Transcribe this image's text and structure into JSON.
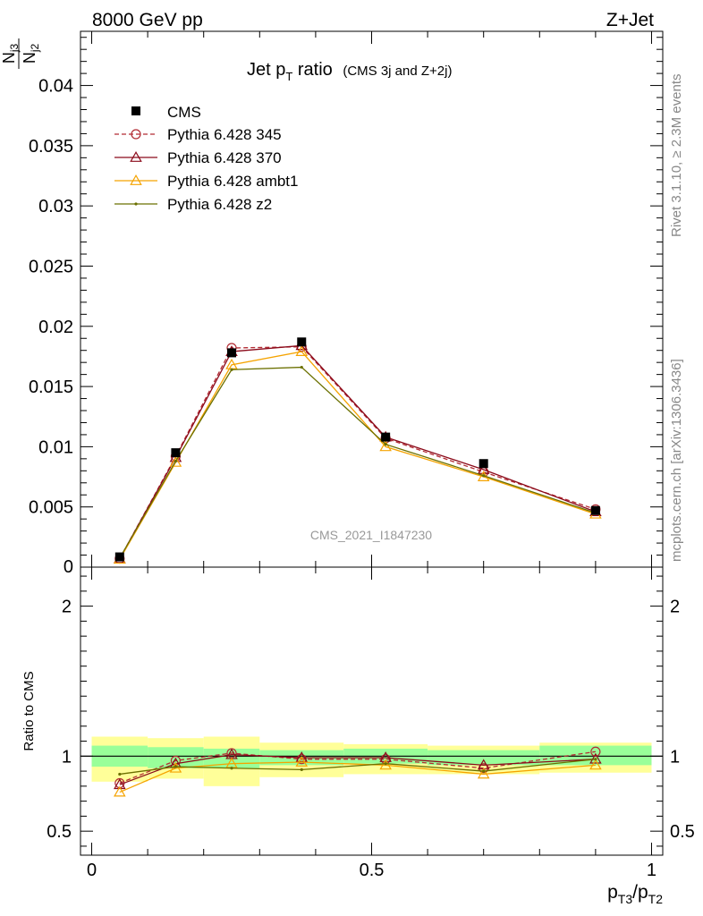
{
  "header": {
    "left": "8000 GeV pp",
    "right": "Z+Jet"
  },
  "side_labels": {
    "rivet": "Rivet 3.1.10, ≥ 2.3M events",
    "source": "mcplots.cern.ch [arXiv:1306.3436]"
  },
  "watermark": "CMS_2021_I1847230",
  "chart_data": [
    {
      "type": "line",
      "title": "Jet pT ratio (CMS 3j and Z+2j)",
      "title_parts": {
        "main": "Jet p",
        "sub": "T",
        "rest": " ratio",
        "small": "(CMS 3j and Z+2j)"
      },
      "ylabel": "Nj3/Nj2",
      "ylabel_parts": {
        "num": "N",
        "num_sub": "j3",
        "den": "N",
        "den_sub": "j2"
      },
      "xlim": [
        -0.02,
        1.02
      ],
      "ylim": [
        0,
        0.0445
      ],
      "yticks": [
        {
          "v": 0.005,
          "label": "0.005"
        },
        {
          "v": 0.01,
          "label": "0.01"
        },
        {
          "v": 0.015,
          "label": "0.015"
        },
        {
          "v": 0.02,
          "label": "0.02"
        },
        {
          "v": 0.025,
          "label": "0.025"
        },
        {
          "v": 0.03,
          "label": "0.03"
        },
        {
          "v": 0.035,
          "label": "0.035"
        },
        {
          "v": 0.04,
          "label": "0.04"
        }
      ],
      "y_zero_label": "0",
      "legend_position": "top-left",
      "x": [
        0.05,
        0.15,
        0.25,
        0.375,
        0.525,
        0.7,
        0.9
      ],
      "data": {
        "name": "CMS",
        "values": [
          0.00085,
          0.0095,
          0.0178,
          0.0187,
          0.0108,
          0.0086,
          0.0047
        ],
        "color": "#000000"
      },
      "series": [
        {
          "name": "Pythia 6.428 345",
          "color": "#b22b33",
          "dashed": true,
          "marker": "circle",
          "values": [
            0.0007,
            0.0092,
            0.0182,
            0.0183,
            0.0107,
            0.0079,
            0.0048
          ]
        },
        {
          "name": "Pythia 6.428 370",
          "color": "#8b0a1a",
          "dashed": false,
          "marker": "triangle",
          "values": [
            0.0007,
            0.0091,
            0.0179,
            0.0184,
            0.0108,
            0.0081,
            0.0046
          ]
        },
        {
          "name": "Pythia 6.428 ambt1",
          "color": "#f5a300",
          "dashed": false,
          "marker": "triangle",
          "values": [
            0.00065,
            0.0087,
            0.0168,
            0.0179,
            0.01,
            0.0075,
            0.0044
          ]
        },
        {
          "name": "Pythia 6.428 z2",
          "color": "#6b7000",
          "dashed": false,
          "marker": "dot",
          "values": [
            0.00075,
            0.0088,
            0.0164,
            0.0166,
            0.0102,
            0.0076,
            0.0045
          ]
        }
      ]
    },
    {
      "type": "line",
      "ylabel": "Ratio to CMS",
      "xlabel": "pT3/pT2",
      "xlabel_parts": {
        "a": "p",
        "a_sub": "T3",
        "slash": "/",
        "b": "p",
        "b_sub": "T2"
      },
      "xlim": [
        -0.02,
        1.02
      ],
      "ylim": [
        0.34,
        2.26
      ],
      "yticks": [
        {
          "v": 0.5,
          "label": "0.5"
        },
        {
          "v": 1,
          "label": "1"
        },
        {
          "v": 2,
          "label": "2"
        }
      ],
      "xticks": [
        {
          "v": 0,
          "label": "0"
        },
        {
          "v": 0.5,
          "label": "0.5"
        },
        {
          "v": 1,
          "label": "1"
        }
      ],
      "bins": [
        {
          "lo": 0.0,
          "hi": 0.1,
          "inner": [
            0.93,
            1.07
          ],
          "outer": [
            0.83,
            1.13
          ]
        },
        {
          "lo": 0.1,
          "hi": 0.2,
          "inner": [
            0.92,
            1.06
          ],
          "outer": [
            0.85,
            1.12
          ]
        },
        {
          "lo": 0.2,
          "hi": 0.3,
          "inner": [
            0.92,
            1.05
          ],
          "outer": [
            0.8,
            1.13
          ]
        },
        {
          "lo": 0.3,
          "hi": 0.45,
          "inner": [
            0.94,
            1.04
          ],
          "outer": [
            0.86,
            1.09
          ]
        },
        {
          "lo": 0.45,
          "hi": 0.6,
          "inner": [
            0.95,
            1.05
          ],
          "outer": [
            0.88,
            1.08
          ]
        },
        {
          "lo": 0.6,
          "hi": 0.8,
          "inner": [
            0.94,
            1.04
          ],
          "outer": [
            0.88,
            1.07
          ]
        },
        {
          "lo": 0.8,
          "hi": 1.0,
          "inner": [
            0.94,
            1.07
          ],
          "outer": [
            0.89,
            1.09
          ]
        }
      ],
      "x": [
        0.05,
        0.15,
        0.25,
        0.375,
        0.525,
        0.7,
        0.9
      ],
      "series": [
        {
          "name": "Pythia 6.428 345",
          "color": "#b22b33",
          "dashed": true,
          "marker": "circle",
          "values": [
            0.82,
            0.97,
            1.02,
            0.98,
            0.98,
            0.92,
            1.03
          ]
        },
        {
          "name": "Pythia 6.428 370",
          "color": "#8b0a1a",
          "dashed": false,
          "marker": "triangle",
          "values": [
            0.81,
            0.95,
            1.01,
            0.99,
            0.99,
            0.94,
            0.98
          ]
        },
        {
          "name": "Pythia 6.428 ambt1",
          "color": "#f5a300",
          "dashed": false,
          "marker": "triangle",
          "values": [
            0.76,
            0.92,
            0.95,
            0.96,
            0.94,
            0.88,
            0.94
          ]
        },
        {
          "name": "Pythia 6.428 z2",
          "color": "#6b7000",
          "dashed": false,
          "marker": "dot",
          "values": [
            0.88,
            0.93,
            0.92,
            0.91,
            0.95,
            0.9,
            0.98
          ]
        }
      ]
    }
  ]
}
